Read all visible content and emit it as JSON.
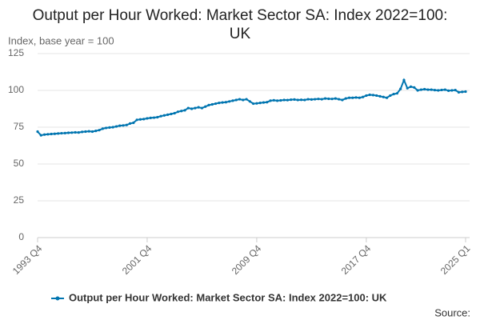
{
  "chart_data": {
    "type": "line",
    "title": "Output per Hour Worked: Market Sector SA: Index 2022=100: UK",
    "y_label": "Index, base year = 100",
    "source": "Source:",
    "categories": [
      "1993 Q4",
      null,
      null,
      null,
      null,
      null,
      null,
      null,
      null,
      null,
      null,
      null,
      null,
      null,
      null,
      null,
      null,
      null,
      null,
      null,
      null,
      null,
      null,
      null,
      null,
      null,
      null,
      null,
      null,
      null,
      null,
      null,
      "2001 Q4",
      null,
      null,
      null,
      null,
      null,
      null,
      null,
      null,
      null,
      null,
      null,
      null,
      null,
      null,
      null,
      null,
      null,
      null,
      null,
      null,
      null,
      null,
      null,
      null,
      null,
      null,
      null,
      null,
      null,
      null,
      null,
      "2009 Q4",
      null,
      null,
      null,
      null,
      null,
      null,
      null,
      null,
      null,
      null,
      null,
      null,
      null,
      null,
      null,
      null,
      null,
      null,
      null,
      null,
      null,
      null,
      null,
      null,
      null,
      null,
      null,
      null,
      null,
      null,
      null,
      "2017 Q4",
      null,
      null,
      null,
      null,
      null,
      null,
      null,
      null,
      null,
      null,
      null,
      null,
      null,
      null,
      null,
      null,
      null,
      null,
      null,
      null,
      null,
      null,
      null,
      null,
      null,
      null,
      null,
      null,
      "2025 Q1"
    ],
    "series": [
      {
        "name": "Output per Hour Worked: Market Sector SA: Index 2022=100: UK",
        "color": "#0075b0",
        "values": [
          72,
          69.5,
          70,
          70.2,
          70.4,
          70.5,
          70.7,
          70.9,
          71,
          71.2,
          71.3,
          71.5,
          71.4,
          71.8,
          72,
          72.2,
          72,
          72.5,
          73,
          74,
          74.5,
          74.8,
          75,
          75.5,
          76,
          76.2,
          76.5,
          77.5,
          78,
          80,
          80.3,
          80.5,
          81,
          81.3,
          81.5,
          81.8,
          82.5,
          83,
          83.5,
          84,
          84.5,
          85.5,
          86,
          86.5,
          88,
          87.5,
          88,
          88.5,
          88,
          89,
          90,
          90.5,
          91,
          91.5,
          91.8,
          92,
          92.5,
          93,
          93.5,
          94,
          93.5,
          94,
          92.5,
          91,
          91.2,
          91.5,
          91.8,
          92,
          93,
          93.3,
          93,
          93.2,
          93.5,
          93.4,
          93.7,
          93.8,
          93.5,
          93.6,
          93.5,
          94,
          93.8,
          94,
          94.2,
          94,
          94.5,
          94.3,
          94.2,
          94.5,
          94,
          93.5,
          94.5,
          95,
          95,
          95.2,
          95,
          95.5,
          96.5,
          97,
          96.8,
          96.5,
          96,
          95.5,
          95,
          96.5,
          97.5,
          98,
          101,
          107,
          101.5,
          102.5,
          102,
          100,
          100.5,
          100.8,
          100.5,
          100.5,
          100.2,
          100,
          100.3,
          100.5,
          99.8,
          100,
          100.2,
          98.7,
          99,
          99.2
        ]
      }
    ],
    "ylim": [
      0,
      125
    ],
    "yticks": [
      0,
      25,
      50,
      75,
      100,
      125
    ],
    "grid": true,
    "legend": "bottom"
  }
}
